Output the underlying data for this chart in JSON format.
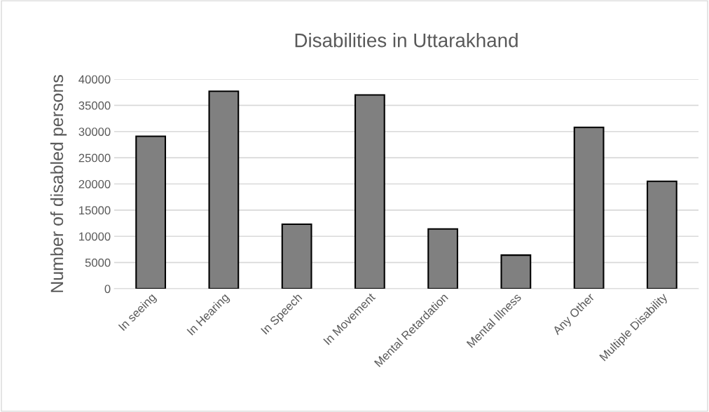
{
  "chart_data": {
    "type": "bar",
    "title": "Disabilities in Uttarakhand",
    "ylabel": "Number of disabled persons",
    "categories": [
      "In seeing",
      "In Hearing",
      "In Speech",
      "In Movement",
      "Mental Retardation",
      "Mental Illness",
      "Any Other",
      "Multiple Disability"
    ],
    "values": [
      29100,
      37700,
      12300,
      37000,
      11400,
      6400,
      30800,
      20500
    ],
    "color": "#808080",
    "ylim": [
      0,
      40000
    ],
    "yticks": [
      0,
      5000,
      10000,
      15000,
      20000,
      25000,
      30000,
      35000,
      40000
    ],
    "grid": "y",
    "legend": false
  }
}
